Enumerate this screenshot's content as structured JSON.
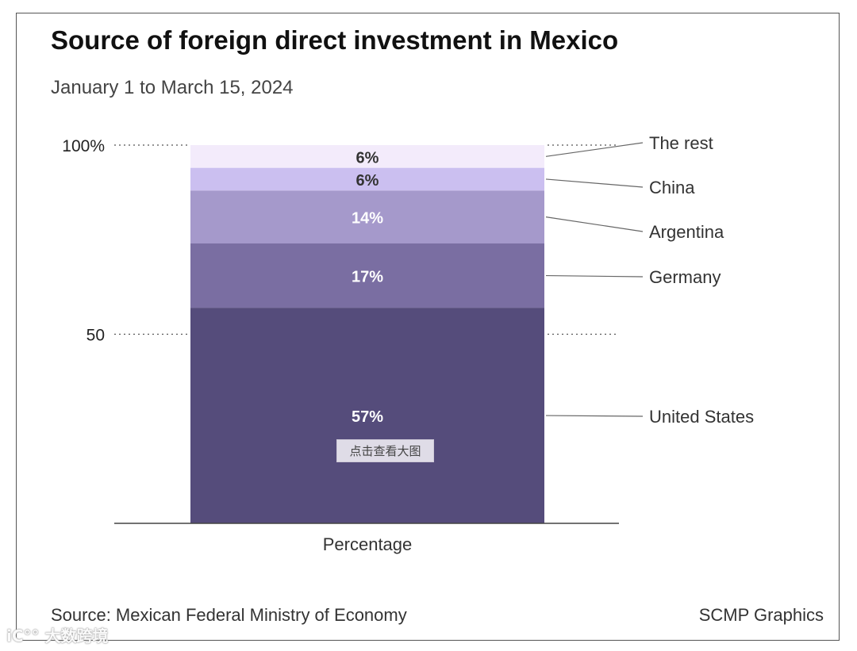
{
  "header": {
    "title": "Source of foreign direct investment in Mexico",
    "subtitle": "January 1 to March 15, 2024"
  },
  "footer": {
    "source": "Source: Mexican Federal Ministry of Economy",
    "credit": "SCMP Graphics"
  },
  "overlay": {
    "zoom_button_label": "点击查看大图",
    "watermark": "iC°° 大数跨境"
  },
  "chart_data": {
    "type": "bar",
    "stacked": true,
    "title": "Source of foreign direct investment in Mexico",
    "subtitle": "January 1 to March 15, 2024",
    "categories": [
      "Percentage"
    ],
    "xlabel": "Percentage",
    "ylabel": "",
    "ylim": [
      0,
      100
    ],
    "y_ticks": [
      {
        "value": 100,
        "label": "100%"
      },
      {
        "value": 50,
        "label": "50"
      }
    ],
    "grid": "dotted at 50 and 100",
    "legend_placement": "right, leader lines",
    "series": [
      {
        "name": "United States",
        "values": [
          57
        ],
        "label": "57%",
        "color": "#554c7b",
        "label_color": "#ffffff"
      },
      {
        "name": "Germany",
        "values": [
          17
        ],
        "label": "17%",
        "color": "#7a6ea2",
        "label_color": "#ffffff"
      },
      {
        "name": "Argentina",
        "values": [
          14
        ],
        "label": "14%",
        "color": "#a599cb",
        "label_color": "#ffffff"
      },
      {
        "name": "China",
        "values": [
          6
        ],
        "label": "6%",
        "color": "#cbbff0",
        "label_color": "#333333"
      },
      {
        "name": "The rest",
        "values": [
          6
        ],
        "label": "6%",
        "color": "#f3ebfb",
        "label_color": "#333333"
      }
    ]
  }
}
